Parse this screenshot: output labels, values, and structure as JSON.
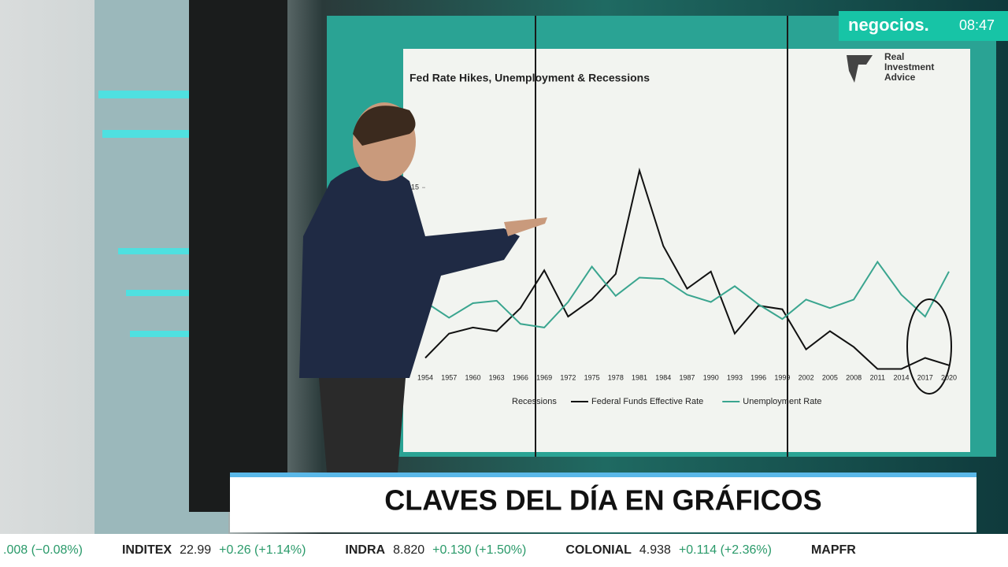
{
  "header": {
    "channel": "negocios.",
    "time": "08:47"
  },
  "chart_data": {
    "type": "line",
    "title": "Fed Rate Hikes, Unemployment & Recessions",
    "logo": [
      "Real",
      "Investment",
      "Advice"
    ],
    "categories": [
      "1954",
      "1957",
      "1960",
      "1963",
      "1966",
      "1969",
      "1972",
      "1975",
      "1978",
      "1981",
      "1984",
      "1987",
      "1990",
      "1993",
      "1996",
      "1999",
      "2002",
      "2005",
      "2008",
      "2011",
      "2014",
      "2017",
      "2020"
    ],
    "legend_extra": "Recessions",
    "series": [
      {
        "name": "Federal Funds Effective Rate",
        "color": "#111111",
        "values": [
          1.0,
          3.0,
          3.5,
          3.2,
          5.1,
          8.2,
          4.4,
          5.8,
          7.9,
          16.4,
          10.2,
          6.7,
          8.1,
          3.0,
          5.3,
          5.0,
          1.7,
          3.2,
          1.9,
          0.1,
          0.1,
          1.0,
          0.4
        ]
      },
      {
        "name": "Unemployment Rate",
        "color": "#3aa58f",
        "values": [
          5.6,
          4.3,
          5.5,
          5.7,
          3.8,
          3.5,
          5.6,
          8.5,
          6.1,
          7.6,
          7.5,
          6.2,
          5.6,
          6.9,
          5.4,
          4.2,
          5.8,
          5.1,
          5.8,
          8.9,
          6.2,
          4.4,
          8.1
        ]
      }
    ],
    "ylim": [
      0,
      22
    ],
    "yticks": [
      15
    ]
  },
  "banner": "CLAVES DEL DÍA EN GRÁFICOS",
  "ticker": [
    {
      "name": "",
      "price": "",
      "change": ".008 (−0.08%)"
    },
    {
      "name": "INDITEX",
      "price": "22.99",
      "change": "+0.26 (+1.14%)"
    },
    {
      "name": "INDRA",
      "price": "8.820",
      "change": "+0.130 (+1.50%)"
    },
    {
      "name": "COLONIAL",
      "price": "4.938",
      "change": "+0.114 (+2.36%)"
    },
    {
      "name": "MAPFR",
      "price": "",
      "change": ""
    }
  ]
}
